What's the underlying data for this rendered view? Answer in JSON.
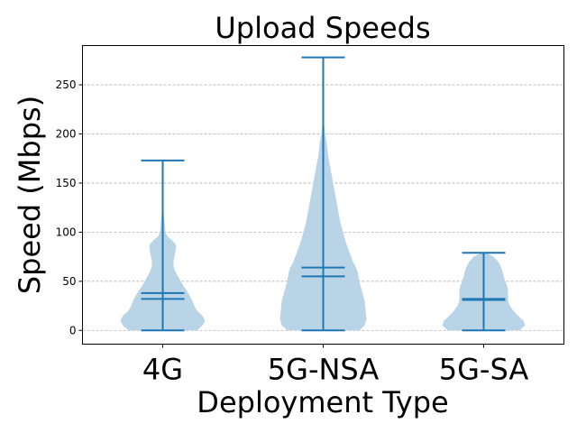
{
  "chart_data": {
    "type": "violin",
    "title": "Upload Speeds",
    "xlabel": "Deployment Type",
    "ylabel": "Speed (Mbps)",
    "ylim": [
      -14,
      290
    ],
    "yticks": [
      0,
      50,
      100,
      150,
      200,
      250
    ],
    "ytick_labels": [
      "0",
      "50",
      "100",
      "150",
      "200",
      "250"
    ],
    "grid": "y dashed",
    "categories": [
      "4G",
      "5G-NSA",
      "5G-SA"
    ],
    "fill_color": "#b9d3e7",
    "line_color": "#1f77b4",
    "series": [
      {
        "category": "4G",
        "min": 0,
        "max": 173,
        "median": 32,
        "mean": 38,
        "profile": [
          [
            0,
            38
          ],
          [
            5,
            44
          ],
          [
            10,
            47
          ],
          [
            15,
            44
          ],
          [
            20,
            38
          ],
          [
            25,
            35
          ],
          [
            30,
            33
          ],
          [
            35,
            30
          ],
          [
            40,
            27
          ],
          [
            45,
            23
          ],
          [
            50,
            20
          ],
          [
            55,
            17
          ],
          [
            60,
            14
          ],
          [
            65,
            12
          ],
          [
            70,
            12
          ],
          [
            75,
            13
          ],
          [
            80,
            14
          ],
          [
            85,
            15
          ],
          [
            88,
            14
          ],
          [
            92,
            10
          ],
          [
            96,
            5
          ],
          [
            100,
            3
          ],
          [
            110,
            2
          ],
          [
            120,
            1
          ],
          [
            140,
            0.6
          ],
          [
            173,
            0.3
          ]
        ]
      },
      {
        "category": "5G-NSA",
        "min": 0,
        "max": 278,
        "median": 55,
        "mean": 64,
        "profile": [
          [
            0,
            40
          ],
          [
            5,
            46
          ],
          [
            12,
            48
          ],
          [
            20,
            47
          ],
          [
            30,
            46
          ],
          [
            40,
            43
          ],
          [
            50,
            40
          ],
          [
            60,
            38
          ],
          [
            65,
            36
          ],
          [
            70,
            33
          ],
          [
            80,
            29
          ],
          [
            90,
            25
          ],
          [
            100,
            22
          ],
          [
            110,
            19
          ],
          [
            120,
            17
          ],
          [
            130,
            15
          ],
          [
            140,
            13
          ],
          [
            150,
            11
          ],
          [
            160,
            9
          ],
          [
            170,
            7
          ],
          [
            180,
            5
          ],
          [
            190,
            4
          ],
          [
            200,
            2
          ],
          [
            210,
            1
          ],
          [
            230,
            0.5
          ],
          [
            278,
            0.3
          ]
        ]
      },
      {
        "category": "5G-SA",
        "min": 0,
        "max": 79,
        "median": 31,
        "mean": 32,
        "profile": [
          [
            0,
            40
          ],
          [
            5,
            46
          ],
          [
            10,
            44
          ],
          [
            15,
            38
          ],
          [
            20,
            33
          ],
          [
            25,
            29
          ],
          [
            30,
            27
          ],
          [
            35,
            27
          ],
          [
            40,
            27
          ],
          [
            45,
            26
          ],
          [
            50,
            24
          ],
          [
            55,
            22
          ],
          [
            60,
            21
          ],
          [
            65,
            19
          ],
          [
            70,
            16
          ],
          [
            75,
            11
          ],
          [
            79,
            3
          ]
        ]
      }
    ]
  }
}
